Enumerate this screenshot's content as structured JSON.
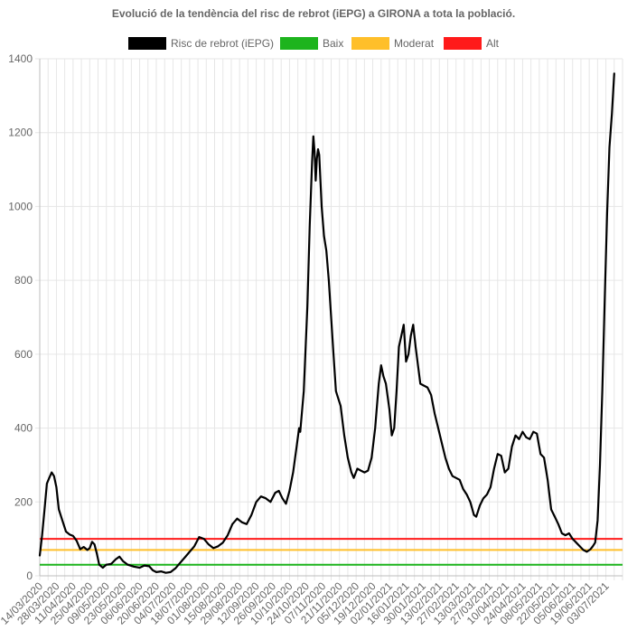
{
  "chart_data": {
    "type": "line",
    "title": "Evolució de la tendència del risc de rebrot (iEPG) a GIRONA a tota la població.",
    "xlabel": "",
    "ylabel": "",
    "ylim": [
      0,
      1400
    ],
    "yticks": [
      "0",
      "200",
      "400",
      "600",
      "800",
      "1000",
      "1200",
      "1400"
    ],
    "grid": true,
    "legend_position": "top-center",
    "legend": [
      {
        "label": "Risc de rebrot (iEPG)",
        "color": "#000000"
      },
      {
        "label": "Baix",
        "color": "#1db41d"
      },
      {
        "label": "Moderat",
        "color": "#ffbf2a"
      },
      {
        "label": "Alt",
        "color": "#ff1a1a"
      }
    ],
    "x_tick_labels": [
      "14/03/2020",
      "28/03/2020",
      "11/04/2020",
      "25/04/2020",
      "09/05/2020",
      "23/05/2020",
      "06/06/2020",
      "20/06/2020",
      "04/07/2020",
      "18/07/2020",
      "01/08/2020",
      "15/08/2020",
      "29/08/2020",
      "12/09/2020",
      "26/09/2020",
      "10/10/2020",
      "24/10/2020",
      "07/11/2020",
      "21/11/2020",
      "05/12/2020",
      "19/12/2020",
      "02/01/2021",
      "16/01/2021",
      "30/01/2021",
      "13/02/2021",
      "27/02/2021",
      "13/03/2021",
      "27/03/2021",
      "10/04/2021",
      "24/04/2021",
      "08/05/2021",
      "22/05/2021",
      "05/06/2021",
      "19/06/2021",
      "03/07/2021"
    ],
    "x_start": "2020-03-14",
    "x_end": "2021-07-17",
    "thresholds": [
      {
        "name": "Baix",
        "value": 30,
        "color": "#1db41d"
      },
      {
        "name": "Moderat",
        "value": 70,
        "color": "#ffbf2a"
      },
      {
        "name": "Alt",
        "value": 100,
        "color": "#ff1a1a"
      }
    ],
    "series": [
      {
        "name": "Risc de rebrot (iEPG)",
        "color": "#000000",
        "points": [
          [
            "2020-03-14",
            55
          ],
          [
            "2020-03-16",
            110
          ],
          [
            "2020-03-18",
            180
          ],
          [
            "2020-03-20",
            250
          ],
          [
            "2020-03-22",
            265
          ],
          [
            "2020-03-24",
            280
          ],
          [
            "2020-03-26",
            270
          ],
          [
            "2020-03-28",
            240
          ],
          [
            "2020-03-30",
            180
          ],
          [
            "2020-04-02",
            150
          ],
          [
            "2020-04-05",
            120
          ],
          [
            "2020-04-08",
            112
          ],
          [
            "2020-04-11",
            108
          ],
          [
            "2020-04-14",
            95
          ],
          [
            "2020-04-17",
            72
          ],
          [
            "2020-04-20",
            78
          ],
          [
            "2020-04-23",
            70
          ],
          [
            "2020-04-25",
            75
          ],
          [
            "2020-04-27",
            92
          ],
          [
            "2020-04-29",
            85
          ],
          [
            "2020-05-01",
            60
          ],
          [
            "2020-05-03",
            30
          ],
          [
            "2020-05-06",
            22
          ],
          [
            "2020-05-09",
            30
          ],
          [
            "2020-05-13",
            32
          ],
          [
            "2020-05-17",
            45
          ],
          [
            "2020-05-20",
            52
          ],
          [
            "2020-05-23",
            40
          ],
          [
            "2020-05-27",
            30
          ],
          [
            "2020-06-01",
            25
          ],
          [
            "2020-06-06",
            22
          ],
          [
            "2020-06-10",
            28
          ],
          [
            "2020-06-14",
            26
          ],
          [
            "2020-06-17",
            15
          ],
          [
            "2020-06-20",
            10
          ],
          [
            "2020-06-24",
            12
          ],
          [
            "2020-06-28",
            8
          ],
          [
            "2020-07-02",
            10
          ],
          [
            "2020-07-06",
            20
          ],
          [
            "2020-07-10",
            35
          ],
          [
            "2020-07-14",
            50
          ],
          [
            "2020-07-18",
            65
          ],
          [
            "2020-07-22",
            80
          ],
          [
            "2020-07-26",
            105
          ],
          [
            "2020-07-30",
            100
          ],
          [
            "2020-08-03",
            85
          ],
          [
            "2020-08-07",
            75
          ],
          [
            "2020-08-11",
            80
          ],
          [
            "2020-08-15",
            90
          ],
          [
            "2020-08-19",
            110
          ],
          [
            "2020-08-23",
            140
          ],
          [
            "2020-08-27",
            155
          ],
          [
            "2020-08-31",
            145
          ],
          [
            "2020-09-04",
            140
          ],
          [
            "2020-09-08",
            165
          ],
          [
            "2020-09-12",
            200
          ],
          [
            "2020-09-16",
            215
          ],
          [
            "2020-09-20",
            210
          ],
          [
            "2020-09-24",
            200
          ],
          [
            "2020-09-28",
            225
          ],
          [
            "2020-10-01",
            230
          ],
          [
            "2020-10-04",
            210
          ],
          [
            "2020-10-07",
            195
          ],
          [
            "2020-10-10",
            230
          ],
          [
            "2020-10-13",
            280
          ],
          [
            "2020-10-16",
            350
          ],
          [
            "2020-10-18",
            400
          ],
          [
            "2020-10-19",
            390
          ],
          [
            "2020-10-22",
            500
          ],
          [
            "2020-10-25",
            730
          ],
          [
            "2020-10-27",
            950
          ],
          [
            "2020-10-29",
            1120
          ],
          [
            "2020-10-30",
            1190
          ],
          [
            "2020-10-31",
            1150
          ],
          [
            "2020-11-01",
            1070
          ],
          [
            "2020-11-02",
            1130
          ],
          [
            "2020-11-03",
            1155
          ],
          [
            "2020-11-04",
            1140
          ],
          [
            "2020-11-06",
            1000
          ],
          [
            "2020-11-08",
            920
          ],
          [
            "2020-11-10",
            880
          ],
          [
            "2020-11-12",
            800
          ],
          [
            "2020-11-14",
            700
          ],
          [
            "2020-11-16",
            600
          ],
          [
            "2020-11-18",
            500
          ],
          [
            "2020-11-20",
            480
          ],
          [
            "2020-11-22",
            460
          ],
          [
            "2020-11-25",
            380
          ],
          [
            "2020-11-28",
            320
          ],
          [
            "2020-12-01",
            280
          ],
          [
            "2020-12-03",
            265
          ],
          [
            "2020-12-06",
            290
          ],
          [
            "2020-12-09",
            285
          ],
          [
            "2020-12-12",
            280
          ],
          [
            "2020-12-15",
            285
          ],
          [
            "2020-12-18",
            320
          ],
          [
            "2020-12-21",
            400
          ],
          [
            "2020-12-24",
            520
          ],
          [
            "2020-12-26",
            570
          ],
          [
            "2020-12-28",
            540
          ],
          [
            "2020-12-30",
            520
          ],
          [
            "2021-01-02",
            450
          ],
          [
            "2021-01-04",
            380
          ],
          [
            "2021-01-06",
            400
          ],
          [
            "2021-01-08",
            500
          ],
          [
            "2021-01-10",
            620
          ],
          [
            "2021-01-12",
            650
          ],
          [
            "2021-01-14",
            680
          ],
          [
            "2021-01-16",
            580
          ],
          [
            "2021-01-18",
            600
          ],
          [
            "2021-01-20",
            650
          ],
          [
            "2021-01-22",
            680
          ],
          [
            "2021-01-24",
            620
          ],
          [
            "2021-01-26",
            570
          ],
          [
            "2021-01-28",
            520
          ],
          [
            "2021-01-31",
            515
          ],
          [
            "2021-02-03",
            510
          ],
          [
            "2021-02-06",
            490
          ],
          [
            "2021-02-09",
            440
          ],
          [
            "2021-02-12",
            400
          ],
          [
            "2021-02-15",
            360
          ],
          [
            "2021-02-18",
            320
          ],
          [
            "2021-02-21",
            290
          ],
          [
            "2021-02-24",
            270
          ],
          [
            "2021-02-27",
            265
          ],
          [
            "2021-03-02",
            260
          ],
          [
            "2021-03-05",
            235
          ],
          [
            "2021-03-08",
            220
          ],
          [
            "2021-03-11",
            200
          ],
          [
            "2021-03-14",
            165
          ],
          [
            "2021-03-16",
            160
          ],
          [
            "2021-03-19",
            190
          ],
          [
            "2021-03-22",
            210
          ],
          [
            "2021-03-25",
            220
          ],
          [
            "2021-03-28",
            240
          ],
          [
            "2021-03-31",
            290
          ],
          [
            "2021-04-03",
            330
          ],
          [
            "2021-04-06",
            325
          ],
          [
            "2021-04-09",
            280
          ],
          [
            "2021-04-12",
            290
          ],
          [
            "2021-04-15",
            350
          ],
          [
            "2021-04-18",
            380
          ],
          [
            "2021-04-21",
            370
          ],
          [
            "2021-04-24",
            390
          ],
          [
            "2021-04-27",
            375
          ],
          [
            "2021-04-30",
            370
          ],
          [
            "2021-05-03",
            390
          ],
          [
            "2021-05-06",
            385
          ],
          [
            "2021-05-09",
            330
          ],
          [
            "2021-05-12",
            320
          ],
          [
            "2021-05-15",
            260
          ],
          [
            "2021-05-18",
            180
          ],
          [
            "2021-05-21",
            160
          ],
          [
            "2021-05-24",
            140
          ],
          [
            "2021-05-27",
            115
          ],
          [
            "2021-05-30",
            110
          ],
          [
            "2021-06-02",
            115
          ],
          [
            "2021-06-05",
            100
          ],
          [
            "2021-06-08",
            90
          ],
          [
            "2021-06-11",
            80
          ],
          [
            "2021-06-14",
            70
          ],
          [
            "2021-06-17",
            65
          ],
          [
            "2021-06-20",
            72
          ],
          [
            "2021-06-22",
            80
          ],
          [
            "2021-06-24",
            90
          ],
          [
            "2021-06-26",
            150
          ],
          [
            "2021-06-28",
            300
          ],
          [
            "2021-06-30",
            500
          ],
          [
            "2021-07-02",
            750
          ],
          [
            "2021-07-04",
            980
          ],
          [
            "2021-07-06",
            1160
          ],
          [
            "2021-07-08",
            1250
          ],
          [
            "2021-07-10",
            1360
          ]
        ]
      }
    ]
  }
}
